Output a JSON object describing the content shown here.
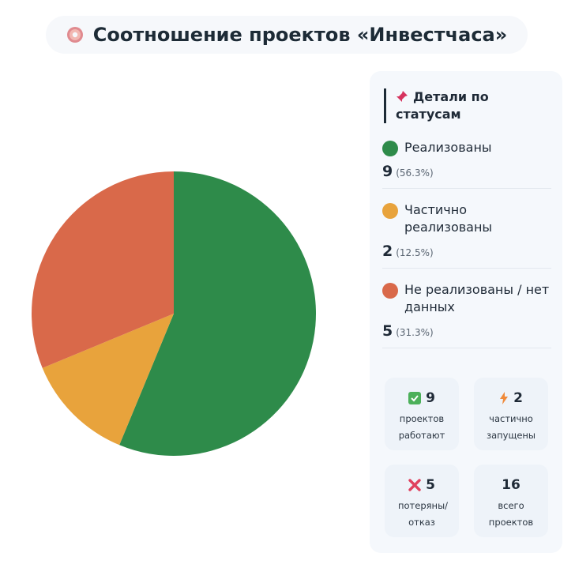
{
  "chart_data": {
    "type": "pie",
    "title": "Соотношение проектов «Инвестчаса»",
    "categories": [
      "Реализованы",
      "Частично реализованы",
      "Не реализованы / нет данных"
    ],
    "values": [
      9,
      2,
      5
    ],
    "percent_labels": [
      "(56.3%)",
      "(12.5%)",
      "(31.3%)"
    ],
    "colors": [
      "#2e8b4a",
      "#e8a33c",
      "#d9694a"
    ]
  },
  "details": {
    "title": "Детали по статусам"
  },
  "stats": [
    {
      "value": 9,
      "label": "проектов работают"
    },
    {
      "value": 2,
      "label": "частично запущены"
    },
    {
      "value": 5,
      "label": "потеряны/ отказ"
    },
    {
      "value": 16,
      "label": "всего проектов"
    }
  ]
}
